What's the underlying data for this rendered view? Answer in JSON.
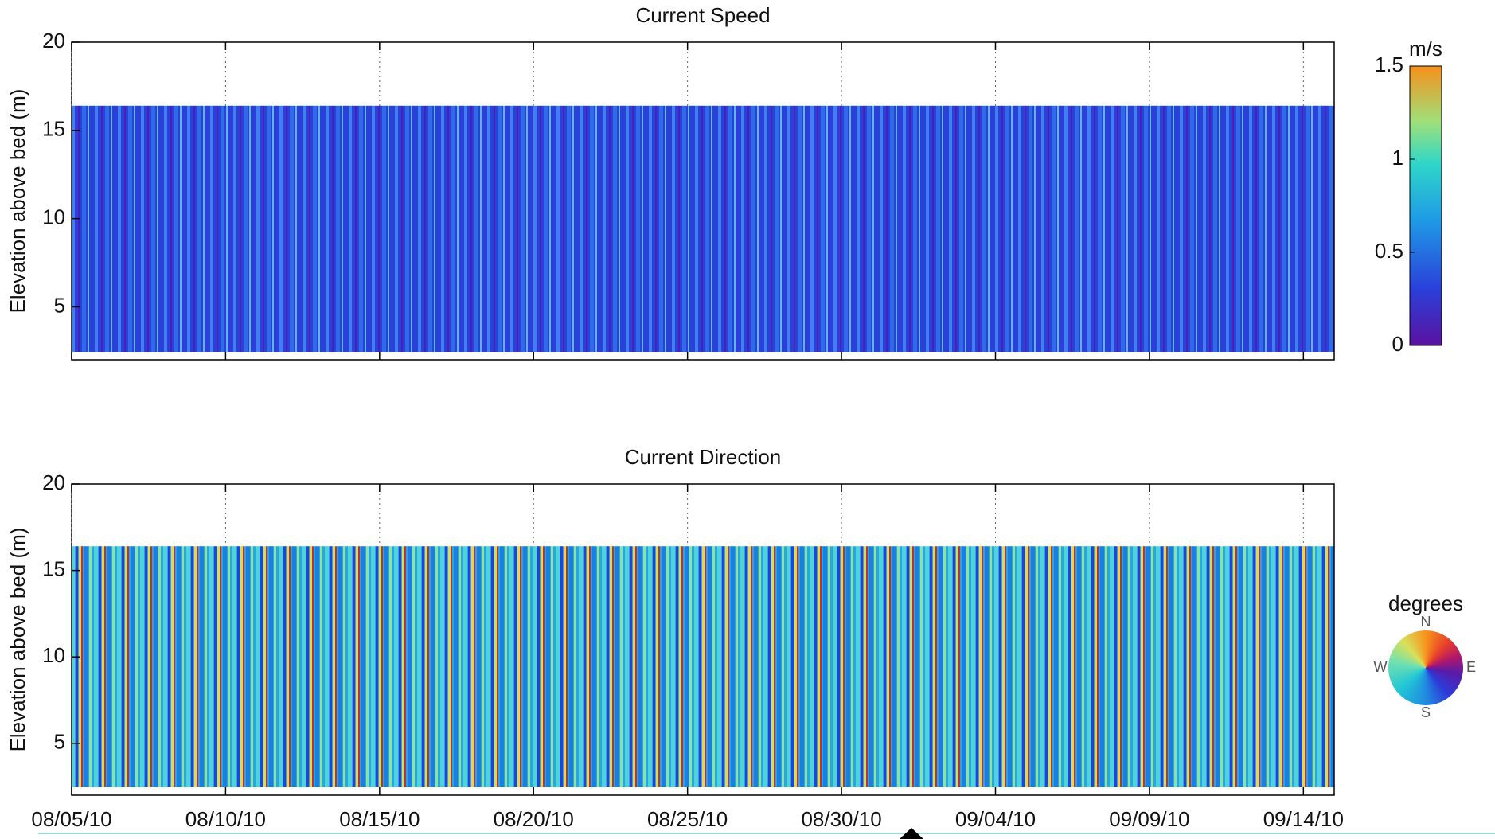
{
  "chart_data": [
    {
      "type": "heatmap",
      "title": "Current Speed",
      "ylabel": "Elevation above bed (m)",
      "ylim": [
        2,
        20
      ],
      "yticks": [
        5,
        10,
        15,
        20
      ],
      "xlim": [
        "08/05/10",
        "09/15/10"
      ],
      "xticks": [
        "08/05/10",
        "08/10/10",
        "08/15/10",
        "08/20/10",
        "08/25/10",
        "08/30/10",
        "09/04/10",
        "09/09/10",
        "09/14/10"
      ],
      "show_xtick_labels": false,
      "colorbar": {
        "label": "m/s",
        "lim": [
          0,
          1.5
        ],
        "ticks": [
          0,
          0.5,
          1,
          1.5
        ]
      }
    },
    {
      "type": "heatmap",
      "title": "Current Direction",
      "ylabel": "Elevation above bed (m)",
      "ylim": [
        2,
        20
      ],
      "yticks": [
        5,
        10,
        15,
        20
      ],
      "xlim": [
        "08/05/10",
        "09/15/10"
      ],
      "xticks": [
        "08/05/10",
        "08/10/10",
        "08/15/10",
        "08/20/10",
        "08/25/10",
        "08/30/10",
        "09/04/10",
        "09/09/10",
        "09/14/10"
      ],
      "show_xtick_labels": true,
      "colorwheel": {
        "label": "degrees",
        "directions": [
          "N",
          "E",
          "S",
          "W"
        ]
      }
    }
  ]
}
